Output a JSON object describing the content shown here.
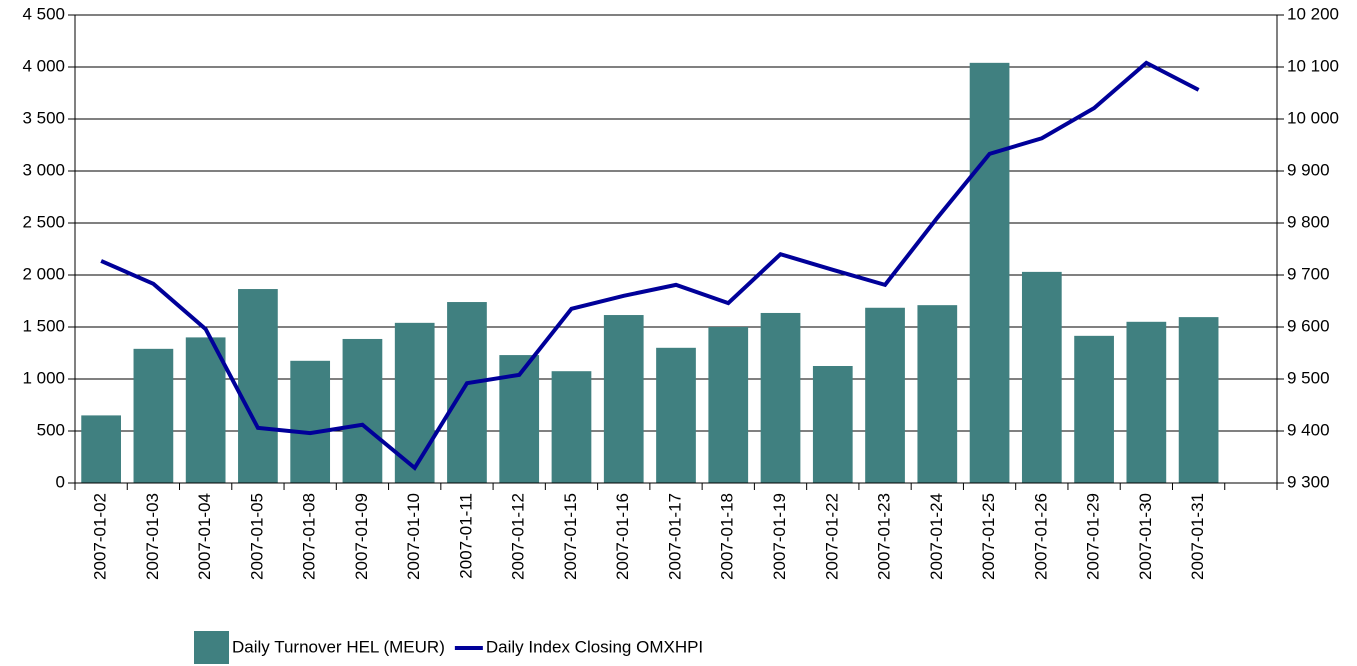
{
  "chart_data": {
    "type": "bar_line",
    "categories": [
      "2007-01-02",
      "2007-01-03",
      "2007-01-04",
      "2007-01-05",
      "2007-01-08",
      "2007-01-09",
      "2007-01-10",
      "2007-01-11",
      "2007-01-12",
      "2007-01-15",
      "2007-01-16",
      "2007-01-17",
      "2007-01-18",
      "2007-01-19",
      "2007-01-22",
      "2007-01-23",
      "2007-01-24",
      "2007-01-25",
      "2007-01-26",
      "2007-01-29",
      "2007-01-30",
      "2007-01-31",
      null
    ],
    "series": [
      {
        "name": "Daily Turnover HEL (MEUR)",
        "type": "bar",
        "color": "#408080",
        "axis": "y",
        "values": [
          650,
          1290,
          1400,
          1865,
          1175,
          1385,
          1540,
          1740,
          1230,
          1075,
          1615,
          1300,
          1500,
          1635,
          1125,
          1685,
          1710,
          4040,
          2030,
          1415,
          1550,
          1595,
          null
        ]
      },
      {
        "name": "Daily Index Closing OMXHPI",
        "type": "line",
        "color": "#000099",
        "axis": "y2",
        "values": [
          9727,
          9683,
          9596,
          9406,
          9396,
          9412,
          9329,
          9492,
          9508,
          9635,
          9660,
          9681,
          9646,
          9740,
          9710,
          9681,
          9810,
          9933,
          9963,
          10021,
          10108,
          10056,
          null
        ]
      }
    ],
    "ylim": [
      0,
      4500
    ],
    "yticks": [
      0,
      500,
      {
        "value": 1000,
        "label": "1 000"
      },
      {
        "value": 1500,
        "label": "1 500"
      },
      {
        "value": 2000,
        "label": "2 000"
      },
      {
        "value": 2500,
        "label": "2 500"
      },
      {
        "value": 3000,
        "label": "3 000"
      },
      {
        "value": 3500,
        "label": "3 500"
      },
      {
        "value": 4000,
        "label": "4 000"
      },
      {
        "value": 4500,
        "label": "4 500"
      }
    ],
    "y2lim": [
      9300,
      10200
    ],
    "y2ticks": [
      {
        "value": 9300,
        "label": "9 300"
      },
      {
        "value": 9400,
        "label": "9 400"
      },
      {
        "value": 9500,
        "label": "9 500"
      },
      {
        "value": 9600,
        "label": "9 600"
      },
      {
        "value": 9700,
        "label": "9 700"
      },
      {
        "value": 9800,
        "label": "9 800"
      },
      {
        "value": 9900,
        "label": "9 900"
      },
      {
        "value": 10000,
        "label": "10 000"
      },
      {
        "value": 10100,
        "label": "10 100"
      },
      {
        "value": 10200,
        "label": "10 200"
      }
    ],
    "grid": true,
    "legend": "bottom"
  }
}
